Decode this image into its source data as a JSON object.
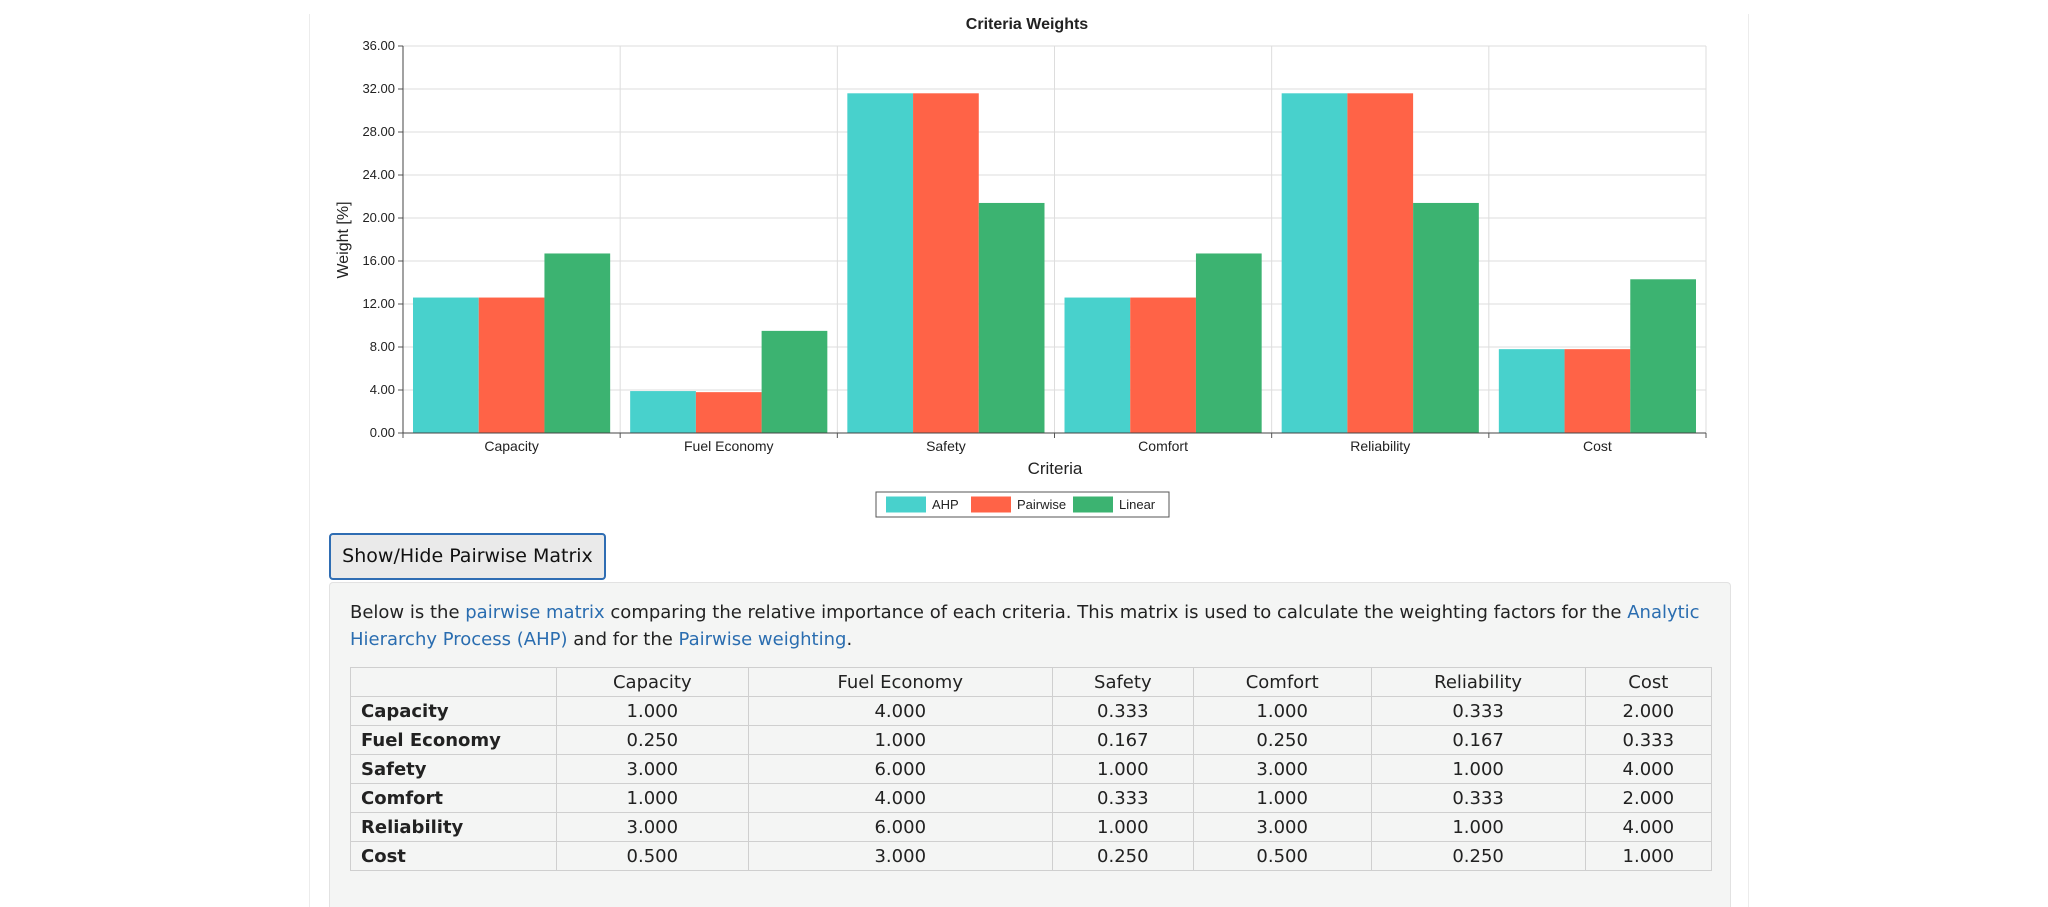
{
  "chart_data": {
    "type": "bar",
    "title": "Criteria Weights",
    "xlabel": "Criteria",
    "ylabel": "Weight [%]",
    "ylim": [
      0,
      36
    ],
    "yticks": [
      "0.00",
      "4.00",
      "8.00",
      "12.00",
      "16.00",
      "20.00",
      "24.00",
      "28.00",
      "32.00",
      "36.00"
    ],
    "categories": [
      "Capacity",
      "Fuel Economy",
      "Safety",
      "Comfort",
      "Reliability",
      "Cost"
    ],
    "series": [
      {
        "name": "AHP",
        "color": "#48d1cc",
        "values": [
          12.6,
          3.9,
          31.6,
          12.6,
          31.6,
          7.8
        ]
      },
      {
        "name": "Pairwise",
        "color": "#ff6347",
        "values": [
          12.6,
          3.8,
          31.6,
          12.6,
          31.6,
          7.8
        ]
      },
      {
        "name": "Linear",
        "color": "#3cb371",
        "values": [
          16.7,
          9.5,
          21.4,
          16.7,
          21.4,
          14.3
        ]
      }
    ],
    "legend_position": "bottom-center",
    "grid": true
  },
  "toggle_button": {
    "label": "Show/Hide Pairwise Matrix"
  },
  "intro": {
    "t1": "Below is the ",
    "link1": "pairwise matrix",
    "t2": " comparing the relative importance of each criteria. This matrix is used to calculate the weighting factors for the ",
    "link2": "Analytic Hierarchy Process (AHP)",
    "t3": " and for the ",
    "link3": "Pairwise weighting",
    "t4": "."
  },
  "matrix": {
    "columns": [
      "Capacity",
      "Fuel Economy",
      "Safety",
      "Comfort",
      "Reliability",
      "Cost"
    ],
    "rows": [
      {
        "label": "Capacity",
        "values": [
          "1.000",
          "4.000",
          "0.333",
          "1.000",
          "0.333",
          "2.000"
        ]
      },
      {
        "label": "Fuel Economy",
        "values": [
          "0.250",
          "1.000",
          "0.167",
          "0.250",
          "0.167",
          "0.333"
        ]
      },
      {
        "label": "Safety",
        "values": [
          "3.000",
          "6.000",
          "1.000",
          "3.000",
          "1.000",
          "4.000"
        ]
      },
      {
        "label": "Comfort",
        "values": [
          "1.000",
          "4.000",
          "0.333",
          "1.000",
          "0.333",
          "2.000"
        ]
      },
      {
        "label": "Reliability",
        "values": [
          "3.000",
          "6.000",
          "1.000",
          "3.000",
          "1.000",
          "4.000"
        ]
      },
      {
        "label": "Cost",
        "values": [
          "0.500",
          "3.000",
          "0.250",
          "0.500",
          "0.250",
          "1.000"
        ]
      }
    ]
  }
}
